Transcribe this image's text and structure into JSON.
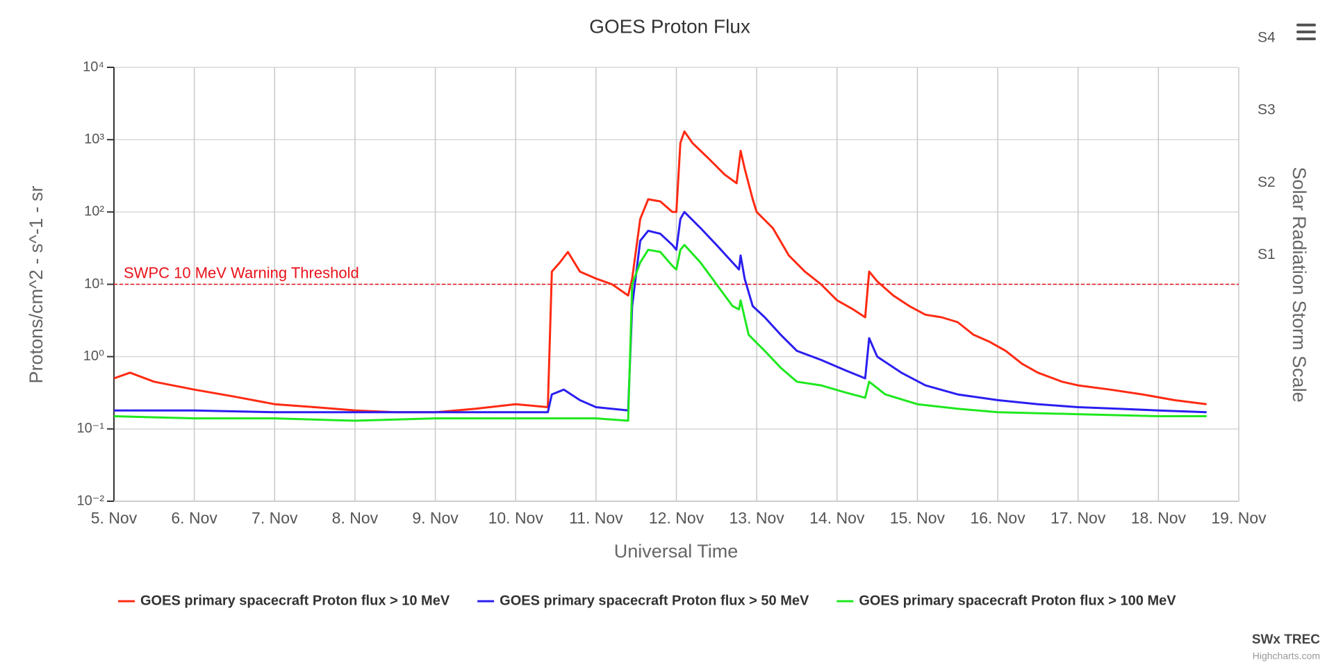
{
  "chart_data": {
    "type": "line",
    "title": "GOES Proton Flux",
    "xlabel": "Universal Time",
    "ylabel": "Protons/cm^2 - s^-1 - sr",
    "y2label": "Solar Radiation Storm Scale",
    "ylog": true,
    "grid": true,
    "legend": "bottom",
    "xlim": [
      5,
      19
    ],
    "xticks": [
      {
        "value": 5,
        "label": "5. Nov"
      },
      {
        "value": 6,
        "label": "6. Nov"
      },
      {
        "value": 7,
        "label": "7. Nov"
      },
      {
        "value": 8,
        "label": "8. Nov"
      },
      {
        "value": 9,
        "label": "9. Nov"
      },
      {
        "value": 10,
        "label": "10. Nov"
      },
      {
        "value": 11,
        "label": "11. Nov"
      },
      {
        "value": 12,
        "label": "12. Nov"
      },
      {
        "value": 13,
        "label": "13. Nov"
      },
      {
        "value": 14,
        "label": "14. Nov"
      },
      {
        "value": 15,
        "label": "15. Nov"
      },
      {
        "value": 16,
        "label": "16. Nov"
      },
      {
        "value": 17,
        "label": "17. Nov"
      },
      {
        "value": 18,
        "label": "18. Nov"
      },
      {
        "value": 19,
        "label": "19. Nov"
      }
    ],
    "ylim": [
      0.01,
      10000
    ],
    "yticks": [
      {
        "value": 0.01,
        "label": "10⁻²"
      },
      {
        "value": 0.1,
        "label": "10⁻¹"
      },
      {
        "value": 1,
        "label": "10⁰"
      },
      {
        "value": 10,
        "label": "10¹"
      },
      {
        "value": 100,
        "label": "10²"
      },
      {
        "value": 1000,
        "label": "10³"
      },
      {
        "value": 10000,
        "label": "10⁴"
      }
    ],
    "y2lim": [
      0.01,
      10000
    ],
    "y2ticks": [
      {
        "value": 10,
        "label": "S1"
      },
      {
        "value": 100,
        "label": "S2"
      },
      {
        "value": 1000,
        "label": "S3"
      },
      {
        "value": 10000,
        "label": "S4"
      }
    ],
    "threshold": {
      "value": 10,
      "label": "SWPC 10 MeV Warning Threshold",
      "color": "#e8121a"
    },
    "series": [
      {
        "name": "GOES primary spacecraft Proton flux > 10 MeV",
        "color": "#ff2a12",
        "x": [
          5.0,
          5.2,
          5.5,
          6.0,
          6.5,
          7.0,
          7.5,
          8.0,
          8.5,
          9.0,
          9.5,
          10.0,
          10.4,
          10.45,
          10.55,
          10.65,
          10.8,
          11.0,
          11.2,
          11.4,
          11.45,
          11.55,
          11.65,
          11.8,
          11.95,
          12.0,
          12.05,
          12.1,
          12.2,
          12.4,
          12.6,
          12.75,
          12.8,
          12.85,
          12.95,
          13.0,
          13.2,
          13.4,
          13.6,
          13.8,
          14.0,
          14.2,
          14.35,
          14.4,
          14.5,
          14.7,
          14.9,
          15.1,
          15.3,
          15.5,
          15.7,
          15.9,
          16.1,
          16.3,
          16.5,
          16.8,
          17.0,
          17.4,
          17.8,
          18.2,
          18.6
        ],
        "values": [
          0.5,
          0.6,
          0.45,
          0.35,
          0.28,
          0.22,
          0.2,
          0.18,
          0.17,
          0.17,
          0.19,
          0.22,
          0.2,
          15,
          20,
          28,
          15,
          12,
          10,
          7,
          12,
          80,
          150,
          140,
          100,
          100,
          900,
          1300,
          900,
          550,
          330,
          250,
          700,
          400,
          150,
          100,
          60,
          25,
          15,
          10,
          6,
          4.5,
          3.5,
          15,
          11,
          7,
          5,
          3.8,
          3.5,
          3,
          2,
          1.6,
          1.2,
          0.8,
          0.6,
          0.45,
          0.4,
          0.35,
          0.3,
          0.25,
          0.22
        ]
      },
      {
        "name": "GOES primary spacecraft Proton flux > 50 MeV",
        "color": "#2a1ef0",
        "x": [
          5.0,
          6.0,
          7.0,
          8.0,
          9.0,
          10.0,
          10.4,
          10.45,
          10.6,
          10.8,
          11.0,
          11.4,
          11.45,
          11.55,
          11.65,
          11.8,
          11.95,
          12.0,
          12.05,
          12.1,
          12.3,
          12.5,
          12.7,
          12.78,
          12.8,
          12.85,
          12.95,
          13.1,
          13.3,
          13.5,
          13.8,
          14.1,
          14.35,
          14.4,
          14.5,
          14.8,
          15.1,
          15.5,
          16.0,
          16.5,
          17.0,
          17.5,
          18.0,
          18.6
        ],
        "values": [
          0.18,
          0.18,
          0.17,
          0.17,
          0.17,
          0.17,
          0.17,
          0.3,
          0.35,
          0.25,
          0.2,
          0.18,
          5,
          40,
          55,
          50,
          35,
          30,
          80,
          100,
          60,
          35,
          20,
          16,
          25,
          12,
          5,
          3.5,
          2,
          1.2,
          0.9,
          0.65,
          0.5,
          1.8,
          1,
          0.6,
          0.4,
          0.3,
          0.25,
          0.22,
          0.2,
          0.19,
          0.18,
          0.17
        ]
      },
      {
        "name": "GOES primary spacecraft Proton flux > 100 MeV",
        "color": "#1ee81e",
        "x": [
          5.0,
          6.0,
          7.0,
          8.0,
          9.0,
          10.0,
          11.0,
          11.4,
          11.45,
          11.55,
          11.65,
          11.8,
          11.95,
          12.0,
          12.05,
          12.1,
          12.3,
          12.5,
          12.7,
          12.78,
          12.8,
          12.9,
          13.1,
          13.3,
          13.5,
          13.8,
          14.1,
          14.35,
          14.4,
          14.6,
          15.0,
          15.5,
          16.0,
          17.0,
          18.0,
          18.6
        ],
        "values": [
          0.15,
          0.14,
          0.14,
          0.13,
          0.14,
          0.14,
          0.14,
          0.13,
          10,
          20,
          30,
          28,
          18,
          16,
          30,
          35,
          20,
          10,
          5,
          4.5,
          6,
          2,
          1.2,
          0.7,
          0.45,
          0.4,
          0.32,
          0.27,
          0.45,
          0.3,
          0.22,
          0.19,
          0.17,
          0.16,
          0.15,
          0.15
        ]
      }
    ],
    "credits": [
      "SWx TREC",
      "Highcharts.com"
    ]
  }
}
